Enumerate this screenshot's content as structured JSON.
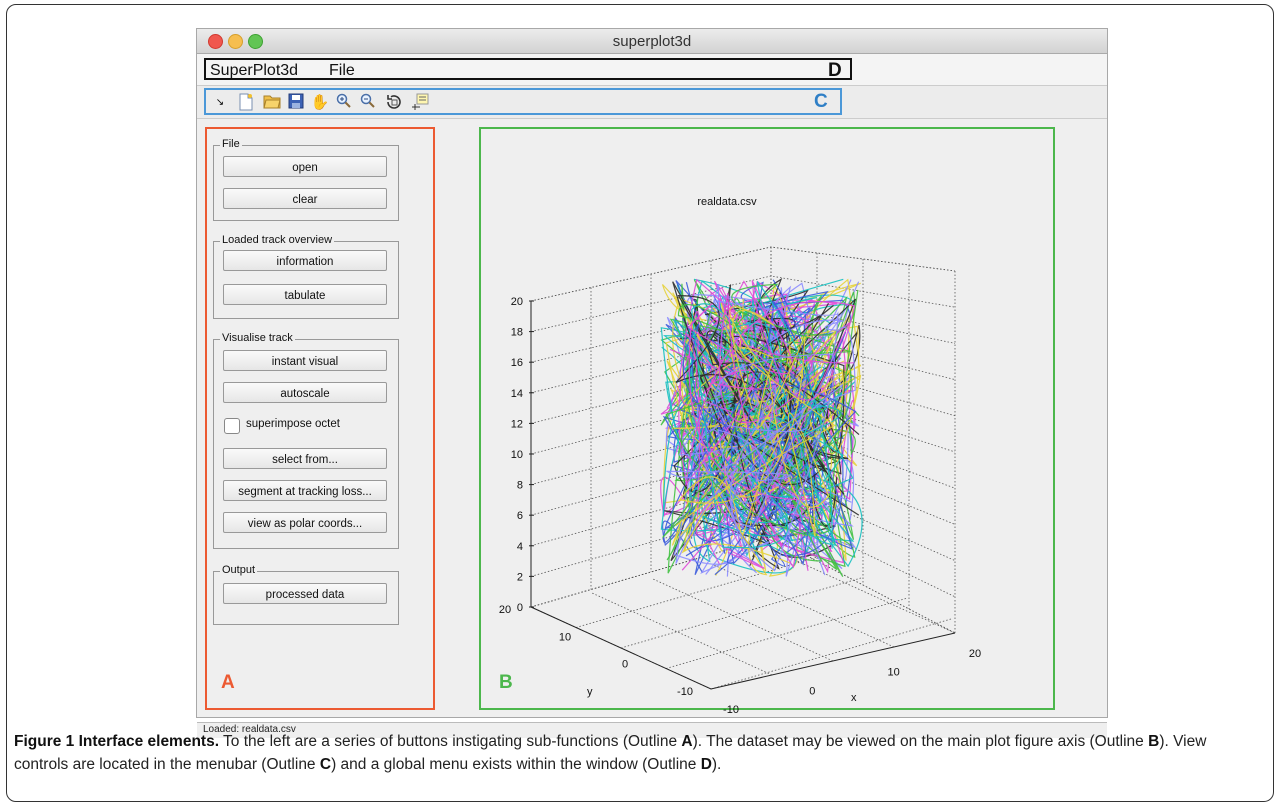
{
  "window": {
    "title": "superplot3d"
  },
  "menubar": {
    "items": [
      "SuperPlot3d",
      "File"
    ],
    "outline_label": "D"
  },
  "toolbar": {
    "icons": [
      "arrow-icon",
      "new-file-icon",
      "open-folder-icon",
      "save-icon",
      "pan-hand-icon",
      "zoom-in-icon",
      "zoom-out-icon",
      "rotate-3d-icon",
      "data-cursor-icon"
    ],
    "outline_label": "C"
  },
  "panel": {
    "outline_label": "A",
    "groups": {
      "file": {
        "title": "File",
        "buttons": [
          "open",
          "clear"
        ]
      },
      "loaded": {
        "title": "Loaded track overview",
        "buttons": [
          "information",
          "tabulate"
        ]
      },
      "visualise": {
        "title": "Visualise track",
        "buttons": [
          "instant visual",
          "autoscale"
        ],
        "checkbox": "superimpose octet",
        "buttons2": [
          "select from...",
          "segment at tracking loss...",
          "view as polar coords..."
        ]
      },
      "output": {
        "title": "Output",
        "buttons": [
          "processed data"
        ]
      }
    }
  },
  "plot": {
    "outline_label": "B"
  },
  "chart_data": {
    "type": "line3d",
    "title": "realdata.csv",
    "xlabel": "x",
    "ylabel": "y",
    "zlabel": "",
    "xticks": [
      "-10",
      "0",
      "10",
      "20"
    ],
    "yticks": [
      "-10",
      "0",
      "10",
      "20"
    ],
    "zticks": [
      "0",
      "2",
      "4",
      "6",
      "8",
      "10",
      "12",
      "14",
      "16",
      "18",
      "20"
    ],
    "zlim": [
      0,
      20
    ],
    "grid": true,
    "series_colors": [
      "#2a2a2a",
      "#3b5bdb",
      "#40c040",
      "#16c0c0",
      "#e04ad8",
      "#e6d23a",
      "#8c8cff"
    ]
  },
  "status": {
    "text": "Loaded: realdata.csv"
  },
  "caption": {
    "lead": "Figure 1 Interface elements.",
    "s1": " To the left are a series of buttons instigating sub-functions (Outline ",
    "a": "A",
    "s2": "). The dataset may be viewed on the main plot figure axis (Outline ",
    "b": "B",
    "s3": "). View controls are located in the menubar (Outline ",
    "c": "C",
    "s4": ") and a global menu exists within the window (Outline ",
    "d": "D",
    "s5": ")."
  }
}
